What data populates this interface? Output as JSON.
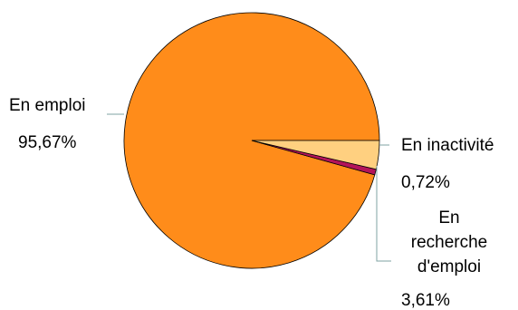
{
  "chart_data": {
    "type": "pie",
    "title": "",
    "slices": [
      {
        "label": "En emploi",
        "value": 95.67,
        "value_label": "95,67%",
        "color": "#FF8C1A"
      },
      {
        "label": "En inactivité",
        "value": 0.72,
        "value_label": "0,72%",
        "color": "#B3145A"
      },
      {
        "label": [
          "En",
          "recherche",
          "d'emploi"
        ],
        "value": 3.61,
        "value_label": "3,61%",
        "color": "#FFD080"
      }
    ],
    "legend": "none",
    "start_angle_deg": 0,
    "direction": "counterclockwise"
  }
}
